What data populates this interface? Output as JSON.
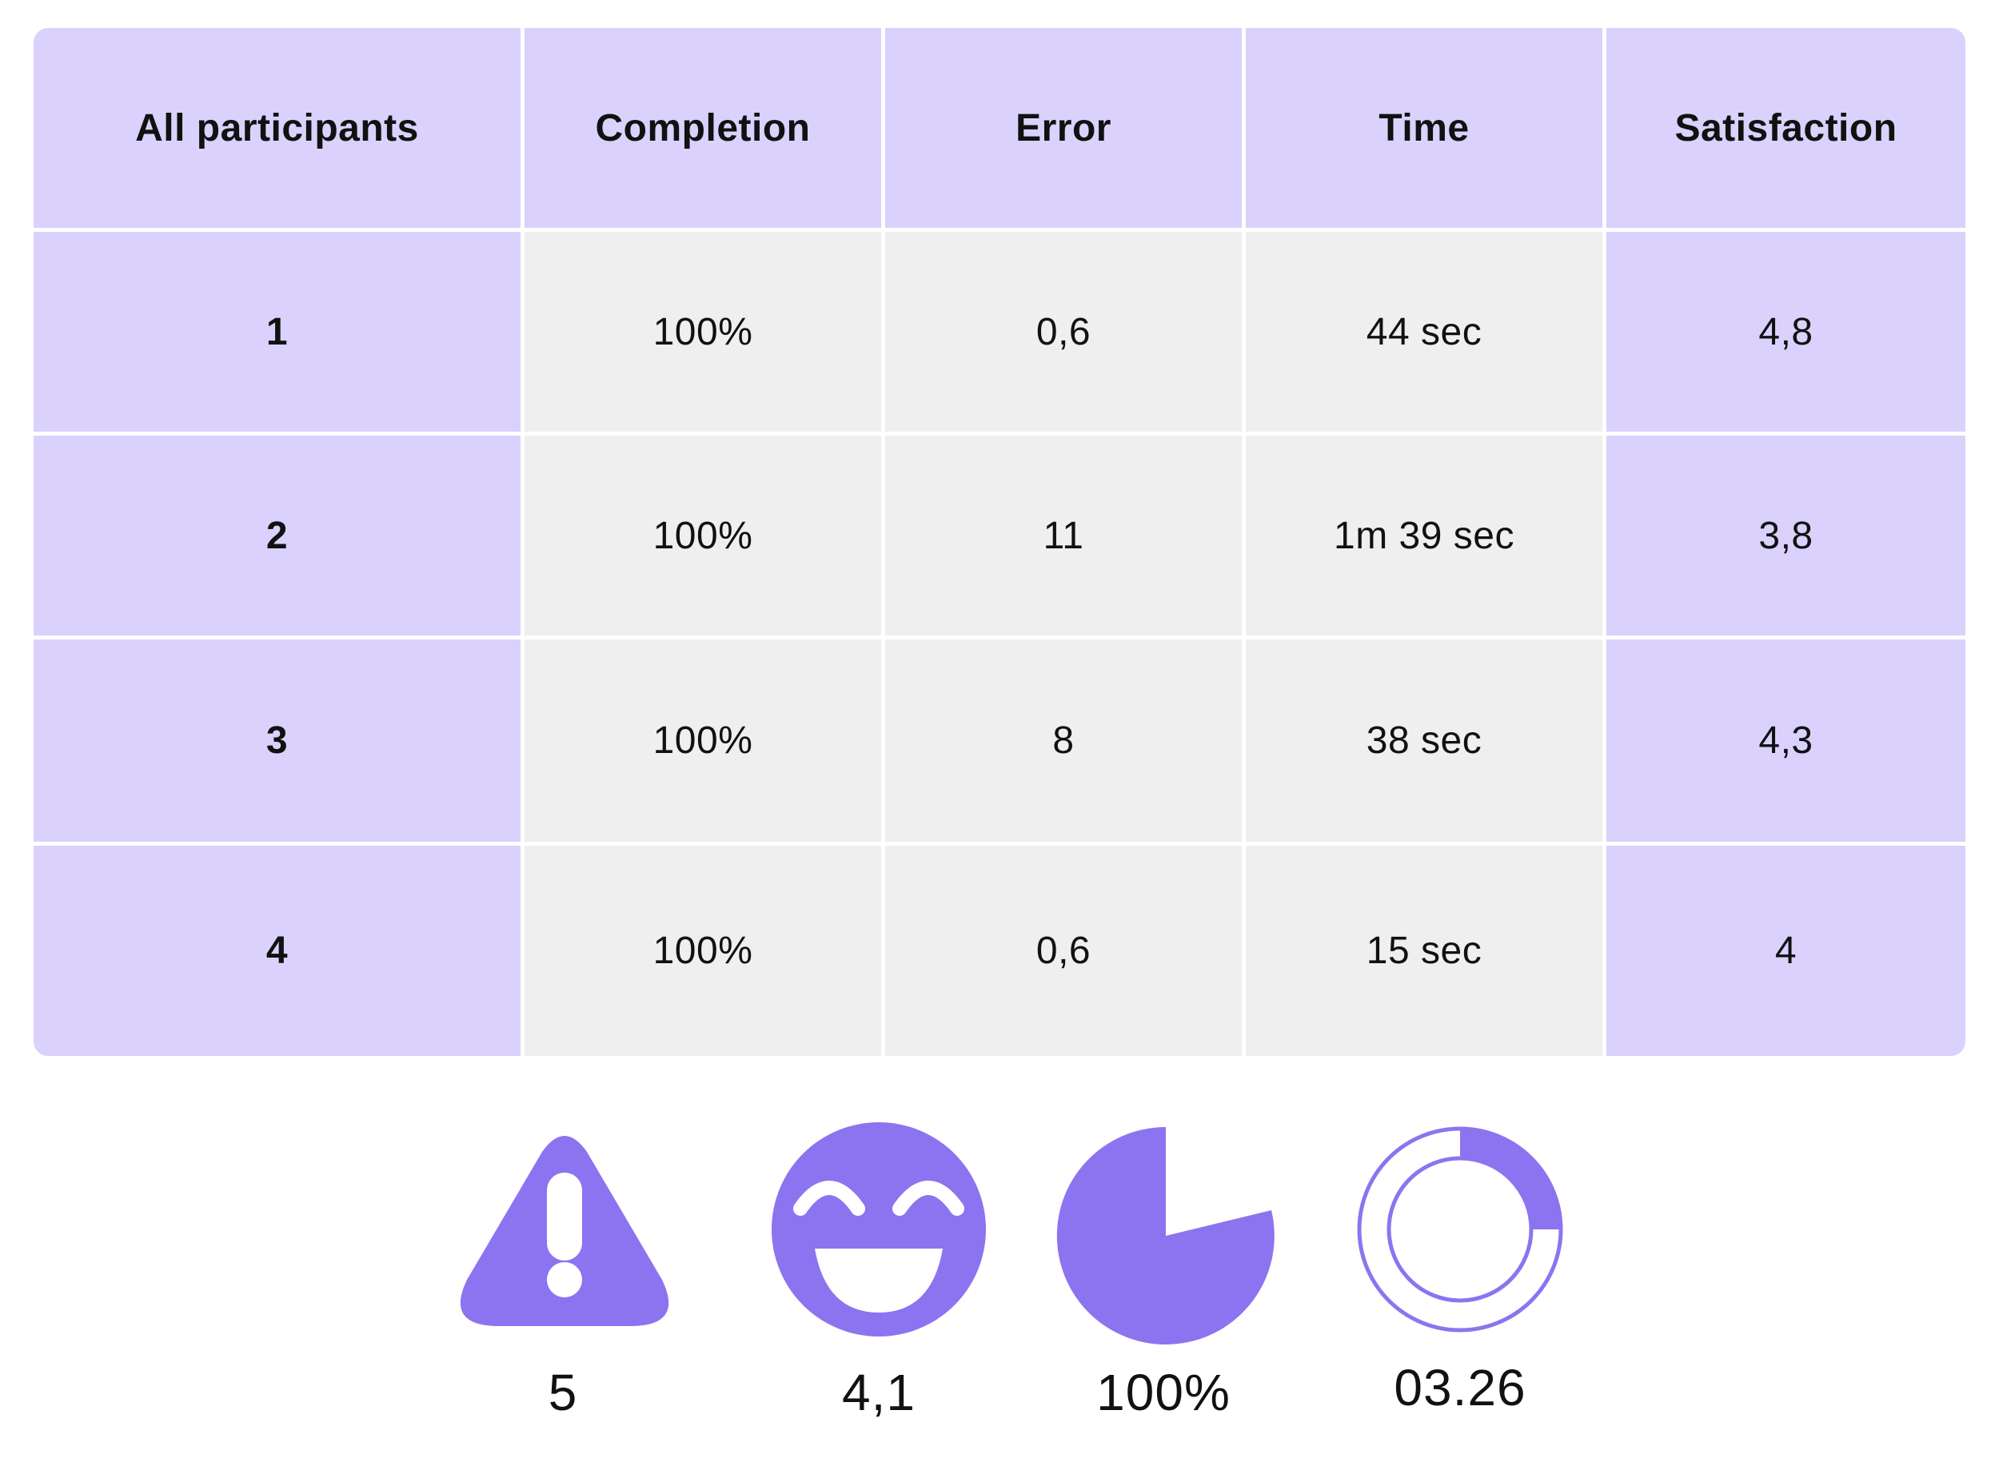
{
  "table": {
    "headers": [
      "All participants",
      "Completion",
      "Error",
      "Time",
      "Satisfaction"
    ],
    "rows": [
      [
        "1",
        "100%",
        "0,6",
        "44 sec",
        "4,8"
      ],
      [
        "2",
        "100%",
        "11",
        "1m 39 sec",
        "3,8"
      ],
      [
        "3",
        "100%",
        "8",
        "38 sec",
        "4,3"
      ],
      [
        "4",
        "100%",
        "0,6",
        "15 sec",
        "4"
      ]
    ]
  },
  "summary": [
    {
      "icon": "warning-triangle-icon",
      "value": "5"
    },
    {
      "icon": "laughing-face-icon",
      "value": "4,1"
    },
    {
      "icon": "completion-pie-icon",
      "value": "100%"
    },
    {
      "icon": "timer-ring-icon",
      "value": "03.26"
    }
  ],
  "colors": {
    "accent": "#8c74f0",
    "lilac_cell": "#dad2fc",
    "grey_cell": "#efefef",
    "text": "#111111"
  }
}
